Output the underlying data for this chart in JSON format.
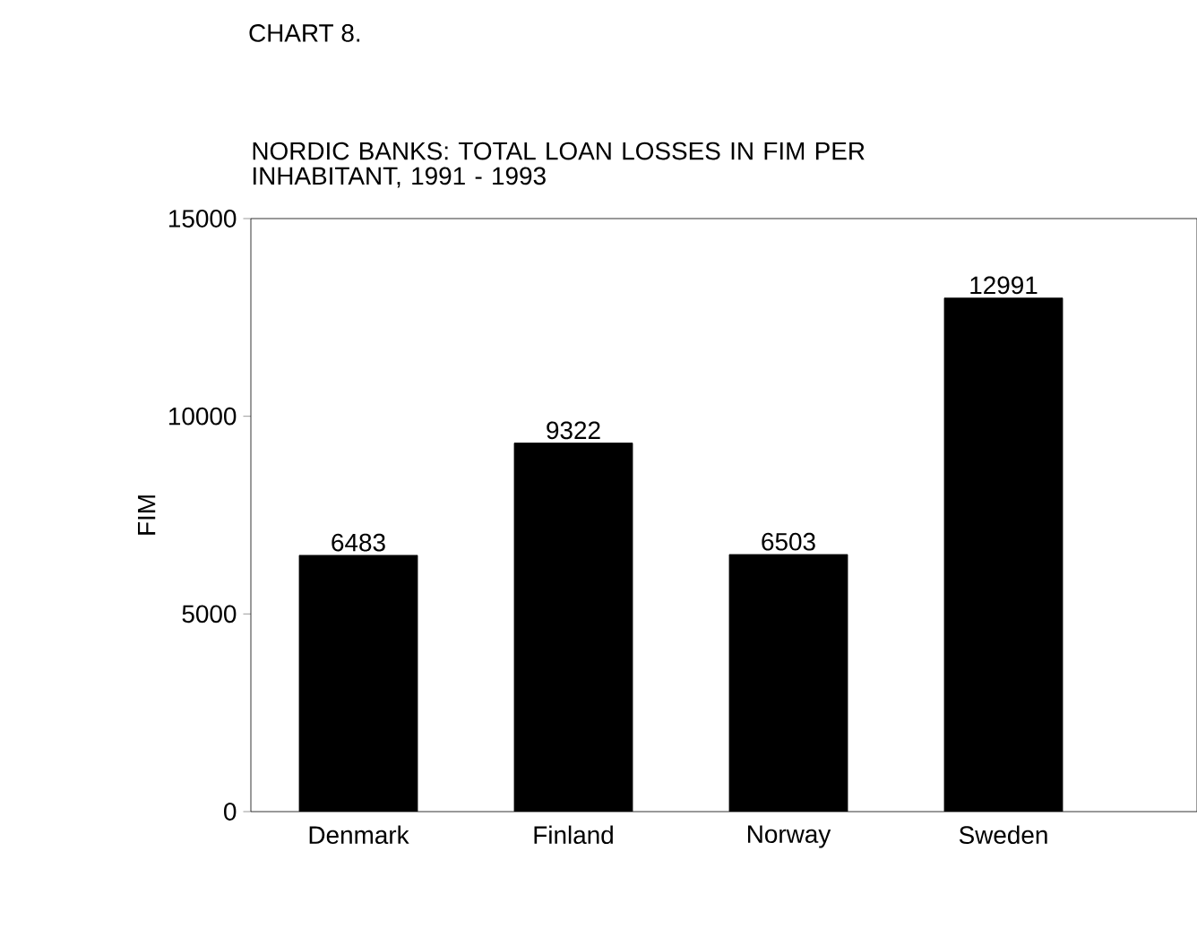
{
  "chart_data": {
    "type": "bar",
    "title": "NORDIC BANKS: TOTAL LOAN LOSSES IN FIM PER INHABITANT, 1991 - 1993",
    "annotations": [
      "CHART 8."
    ],
    "ylabel": "FIM",
    "categories": [
      "Denmark",
      "Finland",
      "Norway",
      "Sweden"
    ],
    "values": [
      6483,
      9322,
      6503,
      12991
    ],
    "color": "#000000",
    "ylim": [
      0,
      15000
    ],
    "yticks": [
      0,
      5000,
      10000,
      15000
    ],
    "data_labels": true,
    "grid": false
  }
}
